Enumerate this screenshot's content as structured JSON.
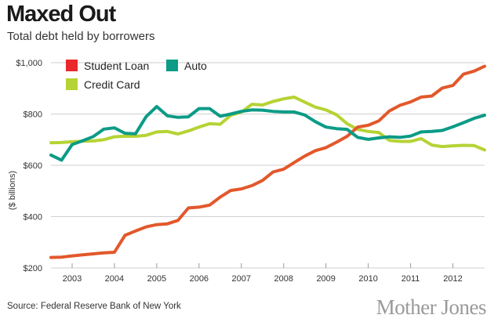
{
  "header": {
    "title": "Maxed Out",
    "subtitle": "Total debt held by borrowers"
  },
  "footer": {
    "source": "Source: Federal Reserve Bank of New York",
    "brand": "Mother Jones"
  },
  "chart_data": {
    "type": "line",
    "title": "Maxed Out",
    "subtitle": "Total debt held by borrowers",
    "xlabel": "",
    "ylabel": "($ billions)",
    "xlim": [
      2002.5,
      2012.75
    ],
    "ylim": [
      200,
      1000
    ],
    "x_ticks": [
      2003,
      2004,
      2005,
      2006,
      2007,
      2008,
      2009,
      2010,
      2011,
      2012
    ],
    "x_tick_labels": [
      "2003",
      "2004",
      "2005",
      "2006",
      "2007",
      "2008",
      "2009",
      "2010",
      "2011",
      "2012"
    ],
    "y_ticks": [
      200,
      400,
      600,
      800,
      1000
    ],
    "y_tick_labels": [
      "$200",
      "$400",
      "$600",
      "$800",
      "$1,000"
    ],
    "grid": "horizontal",
    "legend": "top-left",
    "x": [
      2002.5,
      2002.75,
      2003.0,
      2003.25,
      2003.5,
      2003.75,
      2004.0,
      2004.25,
      2004.5,
      2004.75,
      2005.0,
      2005.25,
      2005.5,
      2005.75,
      2006.0,
      2006.25,
      2006.5,
      2006.75,
      2007.0,
      2007.25,
      2007.5,
      2007.75,
      2008.0,
      2008.25,
      2008.5,
      2008.75,
      2009.0,
      2009.25,
      2009.5,
      2009.75,
      2010.0,
      2010.25,
      2010.5,
      2010.75,
      2011.0,
      2011.25,
      2011.5,
      2011.75,
      2012.0,
      2012.25,
      2012.5,
      2012.75
    ],
    "series": [
      {
        "name": "Student Loan",
        "color": "#e2582b",
        "legend_color": "#e8282b",
        "values": [
          241,
          242,
          247,
          251,
          255,
          259,
          261,
          327,
          344,
          360,
          369,
          372,
          385,
          434,
          437,
          445,
          476,
          502,
          508,
          521,
          541,
          574,
          585,
          611,
          636,
          657,
          669,
          690,
          713,
          749,
          756,
          773,
          812,
          834,
          847,
          866,
          870,
          901,
          911,
          955,
          967,
          986
        ]
      },
      {
        "name": "Auto",
        "color": "#0b9b86",
        "legend_color": "#0b9b86",
        "values": [
          640,
          620,
          681,
          696,
          712,
          741,
          746,
          725,
          723,
          790,
          829,
          793,
          787,
          789,
          821,
          821,
          791,
          800,
          810,
          816,
          815,
          810,
          808,
          808,
          796,
          770,
          749,
          743,
          740,
          709,
          701,
          707,
          711,
          709,
          714,
          730,
          732,
          736,
          750,
          766,
          783,
          795
        ]
      },
      {
        "name": "Credit Card",
        "color": "#b5d334",
        "legend_color": "#b5d334",
        "values": [
          688,
          689,
          692,
          694,
          695,
          700,
          711,
          714,
          713,
          717,
          730,
          732,
          722,
          734,
          749,
          762,
          760,
          795,
          807,
          838,
          835,
          849,
          859,
          866,
          846,
          827,
          816,
          797,
          762,
          740,
          732,
          728,
          697,
          693,
          693,
          704,
          679,
          673,
          676,
          678,
          677,
          660
        ]
      }
    ]
  }
}
